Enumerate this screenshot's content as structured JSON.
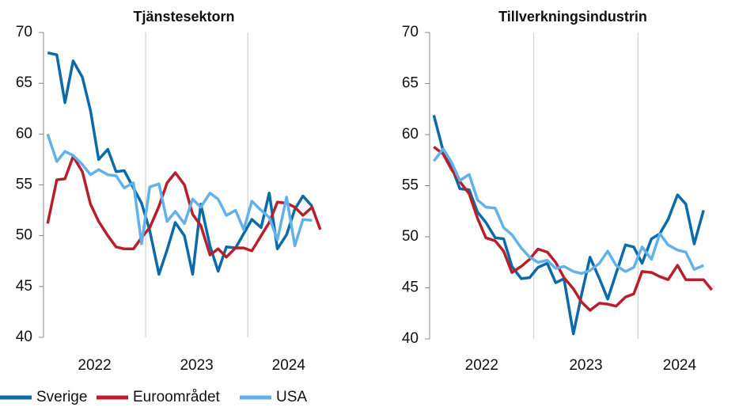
{
  "chart_data": [
    {
      "type": "line",
      "title": "Tjänstesektorn",
      "x": [
        2022.04,
        2022.13,
        2022.21,
        2022.29,
        2022.38,
        2022.46,
        2022.54,
        2022.63,
        2022.71,
        2022.79,
        2022.88,
        2022.96,
        2023.04,
        2023.13,
        2023.21,
        2023.29,
        2023.38,
        2023.46,
        2023.54,
        2023.63,
        2023.71,
        2023.79,
        2023.88,
        2023.96,
        2024.04,
        2024.13,
        2024.21,
        2024.29,
        2024.38,
        2024.46,
        2024.54,
        2024.63,
        2024.71
      ],
      "xlim": [
        2022,
        2024.75
      ],
      "xticks": [
        {
          "value": 2022.5,
          "label": "2022"
        },
        {
          "value": 2023.5,
          "label": "2023"
        },
        {
          "value": 2024.4,
          "label": "2024"
        }
      ],
      "xgrid": [
        2023,
        2024
      ],
      "ylim": [
        40,
        70
      ],
      "yticks": [
        40,
        45,
        50,
        55,
        60,
        65,
        70
      ],
      "series": [
        {
          "name": "Sverige",
          "color": "#0b6aa8",
          "values": [
            68.0,
            67.8,
            63.1,
            67.2,
            65.6,
            62.3,
            57.5,
            58.5,
            56.3,
            56.4,
            54.7,
            53.2,
            50.5,
            46.2,
            48.6,
            51.3,
            50.0,
            46.2,
            53.1,
            49.0,
            46.5,
            48.9,
            48.8,
            50.2,
            51.6,
            50.8,
            54.2,
            48.7,
            50.1,
            52.6,
            53.9,
            52.9,
            null
          ]
        },
        {
          "name": "Euroområdet",
          "color": "#b81f2d",
          "values": [
            51.2,
            55.5,
            55.6,
            57.8,
            56.3,
            53.1,
            51.4,
            50.0,
            48.9,
            48.7,
            48.7,
            49.8,
            50.8,
            52.9,
            55.2,
            56.2,
            55.0,
            52.1,
            51.0,
            48.1,
            48.7,
            47.9,
            48.8,
            48.8,
            48.5,
            50.0,
            51.3,
            53.3,
            53.2,
            52.8,
            52.0,
            52.8,
            50.6
          ]
        },
        {
          "name": "USA",
          "color": "#62b1e8",
          "values": [
            60.0,
            57.3,
            58.3,
            57.9,
            57.0,
            56.0,
            56.5,
            56.0,
            55.9,
            54.7,
            55.2,
            49.2,
            54.8,
            55.1,
            51.4,
            52.4,
            51.2,
            53.6,
            52.8,
            54.2,
            53.6,
            52.0,
            52.5,
            50.6,
            53.4,
            52.5,
            51.8,
            49.6,
            53.8,
            49.0,
            51.6,
            51.5,
            null
          ]
        }
      ]
    },
    {
      "type": "line",
      "title": "Tillverkningsindustrin",
      "x": [
        2022.04,
        2022.13,
        2022.21,
        2022.29,
        2022.38,
        2022.46,
        2022.54,
        2022.63,
        2022.71,
        2022.79,
        2022.88,
        2022.96,
        2023.04,
        2023.13,
        2023.21,
        2023.29,
        2023.38,
        2023.46,
        2023.54,
        2023.63,
        2023.71,
        2023.79,
        2023.88,
        2023.96,
        2024.04,
        2024.13,
        2024.21,
        2024.29,
        2024.38,
        2024.46,
        2024.54,
        2024.63,
        2024.71
      ],
      "xlim": [
        2022,
        2024.75
      ],
      "xticks": [
        {
          "value": 2022.5,
          "label": "2022"
        },
        {
          "value": 2023.5,
          "label": "2023"
        },
        {
          "value": 2024.4,
          "label": "2024"
        }
      ],
      "xgrid": [
        2023,
        2024
      ],
      "ylim": [
        40,
        70
      ],
      "yticks": [
        40,
        45,
        50,
        55,
        60,
        65,
        70
      ],
      "series": [
        {
          "name": "Sverige",
          "color": "#0b6aa8",
          "values": [
            61.9,
            58.4,
            56.9,
            54.7,
            54.6,
            52.4,
            51.4,
            49.9,
            49.8,
            47.1,
            45.9,
            46.0,
            47.0,
            47.4,
            45.5,
            45.9,
            40.5,
            44.4,
            48.0,
            45.9,
            43.9,
            46.4,
            49.2,
            49.0,
            47.4,
            49.8,
            50.3,
            51.7,
            54.1,
            53.2,
            49.3,
            52.6,
            null
          ]
        },
        {
          "name": "Euroområdet",
          "color": "#b81f2d",
          "values": [
            58.8,
            58.1,
            56.6,
            55.4,
            54.2,
            51.8,
            49.9,
            49.6,
            48.6,
            46.5,
            47.1,
            47.8,
            48.8,
            48.5,
            47.5,
            46.0,
            44.9,
            43.6,
            42.8,
            43.5,
            43.4,
            43.2,
            44.1,
            44.4,
            46.6,
            46.5,
            46.1,
            45.8,
            47.2,
            45.8,
            45.8,
            45.8,
            44.8
          ]
        },
        {
          "name": "USA",
          "color": "#62b1e8",
          "values": [
            57.4,
            58.6,
            57.3,
            55.5,
            56.1,
            53.6,
            52.9,
            52.8,
            50.9,
            50.2,
            48.9,
            48.0,
            47.5,
            47.7,
            46.9,
            47.1,
            46.6,
            46.4,
            46.7,
            47.4,
            48.6,
            47.2,
            46.6,
            47.0,
            49.0,
            47.8,
            50.3,
            49.2,
            48.7,
            48.5,
            46.8,
            47.2,
            null
          ]
        }
      ]
    }
  ]
}
